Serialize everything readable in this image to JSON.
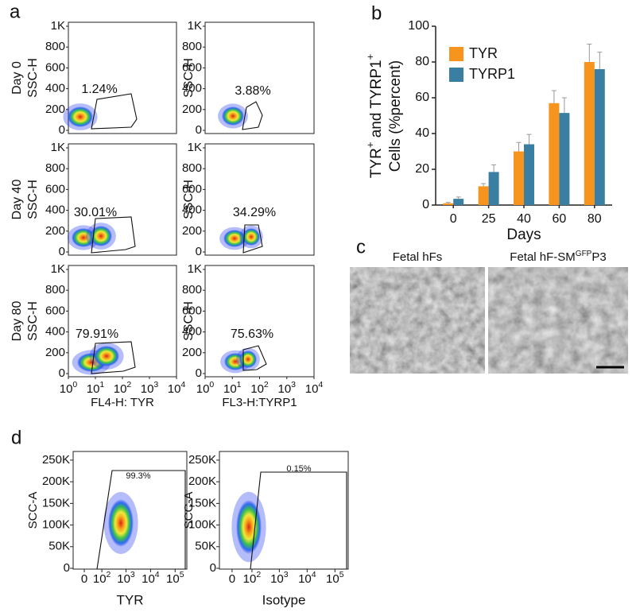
{
  "panel_labels": [
    "a",
    "b",
    "c",
    "d"
  ],
  "flow_a": {
    "ylim": [
      0,
      1000
    ],
    "yticks": [
      0,
      200,
      400,
      600,
      800,
      {
        "value": 1000,
        "label": "1K"
      }
    ],
    "xscale": "log",
    "xlim": [
      1,
      10000
    ],
    "xticks": [
      {
        "value": 1,
        "base": "10",
        "exp": "0"
      },
      {
        "value": 10,
        "base": "10",
        "exp": "1"
      },
      {
        "value": 100,
        "base": "10",
        "exp": "2"
      },
      {
        "value": 1000,
        "base": "10",
        "exp": "3"
      },
      {
        "value": 10000,
        "base": "10",
        "exp": "4"
      }
    ],
    "y_label": "SSC-H",
    "x_labels": [
      "FL4-H: TYR",
      "FL3-H:TYRP1"
    ],
    "rows": [
      {
        "day": "Day 0",
        "gates": [
          "1.24%",
          "3.88%"
        ]
      },
      {
        "day": "Day 40",
        "gates": [
          "30.01%",
          "34.29%"
        ]
      },
      {
        "day": "Day 80",
        "gates": [
          "79.91%",
          "75.63%"
        ]
      }
    ]
  },
  "chart_data": {
    "type": "bar",
    "y_label": {
      "line1": [
        "TYR",
        "+",
        " and TYRP1",
        "+"
      ],
      "line2": "Cells (%percent)"
    },
    "x_label": "Days",
    "categories": [
      "0",
      "25",
      "40",
      "60",
      "80"
    ],
    "series": [
      {
        "name": "TYR",
        "color": "#f7941d",
        "values": [
          1,
          10.5,
          30,
          57,
          80
        ],
        "errors": [
          0.5,
          1.5,
          5,
          7,
          10
        ]
      },
      {
        "name": "TYRP1",
        "color": "#3a7ea1",
        "values": [
          3.5,
          18.5,
          34,
          51.5,
          76
        ],
        "errors": [
          1,
          4,
          5.5,
          8.5,
          9.5
        ]
      }
    ],
    "ylim": [
      0,
      100
    ],
    "yticks": [
      0,
      20,
      40,
      60,
      80,
      100
    ],
    "legend": "upper-left"
  },
  "images": {
    "left_title": "Fetal hFs",
    "right_title": {
      "main": "Fetal hF-SM",
      "sup": "GFP",
      "tail": "P3"
    }
  },
  "flow_d": {
    "ylim": [
      0,
      270000
    ],
    "yticks": [
      0,
      {
        "value": 50000,
        "label": "50K"
      },
      {
        "value": 100000,
        "label": "100K"
      },
      {
        "value": 150000,
        "label": "150K"
      },
      {
        "value": 200000,
        "label": "200K"
      },
      {
        "value": 250000,
        "label": "250K"
      }
    ],
    "xscale": "biexponential",
    "xlim": [
      -50,
      300000
    ],
    "xticks": [
      {
        "value": 0,
        "label": "0"
      },
      {
        "value": 100,
        "base": "10",
        "exp": "2"
      },
      {
        "value": 1000,
        "base": "10",
        "exp": "3"
      },
      {
        "value": 10000,
        "base": "10",
        "exp": "4"
      },
      {
        "value": 100000,
        "base": "10",
        "exp": "5"
      }
    ],
    "y_label": "SCC-A",
    "x_labels": [
      "TYR",
      "Isotype"
    ],
    "gates": [
      "99.3%",
      "0.15%"
    ]
  }
}
